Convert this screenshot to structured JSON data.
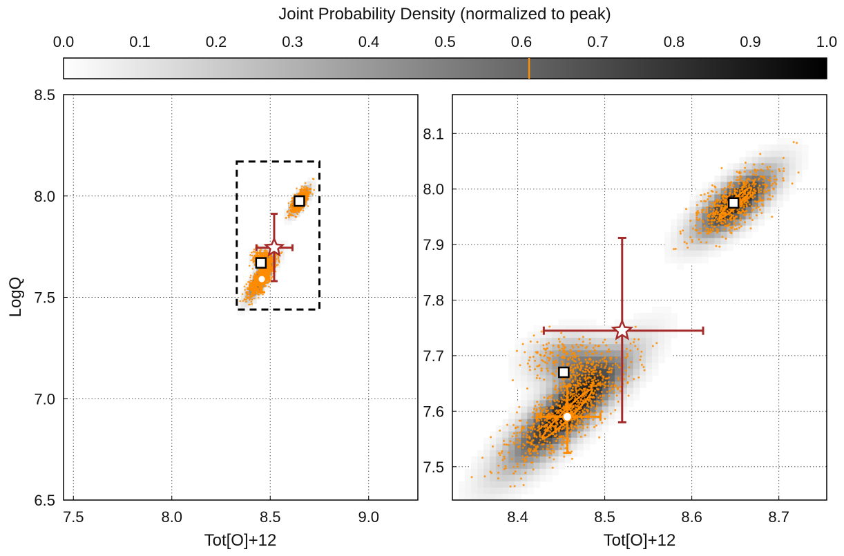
{
  "chart_data": {
    "colorbar": {
      "title": "Joint Probability Density (normalized to peak)",
      "ticks": [
        "0.0",
        "0.1",
        "0.2",
        "0.3",
        "0.4",
        "0.5",
        "0.6",
        "0.7",
        "0.8",
        "0.9",
        "1.0"
      ],
      "range": [
        0.0,
        1.0
      ],
      "marker_value": 0.61,
      "marker_color": "#ff8c00",
      "colormap": "gray_r"
    },
    "panels": [
      {
        "type": "scatter",
        "xlabel": "Tot[O]+12",
        "ylabel": "LogQ",
        "xlim": [
          7.45,
          9.25
        ],
        "ylim": [
          6.5,
          8.5
        ],
        "xticks": [
          "7.5",
          "8.0",
          "8.5",
          "9.0"
        ],
        "yticks": [
          "6.5",
          "7.0",
          "7.5",
          "8.0",
          "8.5"
        ],
        "grid": true,
        "zoom_box": {
          "x": [
            8.33,
            8.75
          ],
          "y": [
            7.44,
            8.17
          ]
        },
        "star": {
          "x": 8.52,
          "y": 7.745,
          "xerr": [
            0.09,
            0.093
          ],
          "yerr": [
            0.165,
            0.167
          ]
        },
        "circle": {
          "x": 8.457,
          "y": 7.59,
          "xerr": [
            0.035,
            0.038
          ],
          "yerr": [
            0.065,
            0.055
          ]
        },
        "squares": [
          {
            "x": 8.453,
            "y": 7.67
          },
          {
            "x": 8.648,
            "y": 7.975
          }
        ]
      },
      {
        "type": "scatter",
        "xlabel": "Tot[O]+12",
        "ylabel": "",
        "xlim": [
          8.325,
          8.755
        ],
        "ylim": [
          7.44,
          8.17
        ],
        "xticks": [
          "8.4",
          "8.5",
          "8.6",
          "8.7"
        ],
        "yticks": [
          "7.5",
          "7.6",
          "7.7",
          "7.8",
          "7.9",
          "8.0",
          "8.1"
        ],
        "grid": true,
        "star": {
          "x": 8.52,
          "y": 7.745,
          "xerr": [
            0.09,
            0.093
          ],
          "yerr": [
            0.165,
            0.167
          ]
        },
        "circle": {
          "x": 8.457,
          "y": 7.59,
          "xerr": [
            0.035,
            0.038
          ],
          "yerr": [
            0.065,
            0.055
          ]
        },
        "squares": [
          {
            "x": 8.453,
            "y": 7.67
          },
          {
            "x": 8.648,
            "y": 7.975
          }
        ],
        "contours": [
          {
            "cx": 8.457,
            "cy": 7.595,
            "rx": 0.052,
            "ry": 0.011,
            "slope": 1.55
          },
          {
            "cx": 8.65,
            "cy": 7.975,
            "rx": 0.033,
            "ry": 0.009,
            "slope": 1.5
          }
        ]
      }
    ],
    "density_clusters": [
      {
        "cx": 8.457,
        "cy": 7.6,
        "sx": 0.078,
        "sy": 0.02,
        "slope": 1.55,
        "amp": 1.0
      },
      {
        "cx": 8.65,
        "cy": 7.975,
        "sx": 0.048,
        "sy": 0.017,
        "slope": 1.5,
        "amp": 0.95
      },
      {
        "cx": 8.46,
        "cy": 7.69,
        "sx": 0.03,
        "sy": 0.028,
        "slope": 1.2,
        "amp": 0.45
      }
    ],
    "colors": {
      "orange": "#ff8c00",
      "star": "#a52a2a",
      "axes": "#000000",
      "grid": "#555555"
    }
  }
}
